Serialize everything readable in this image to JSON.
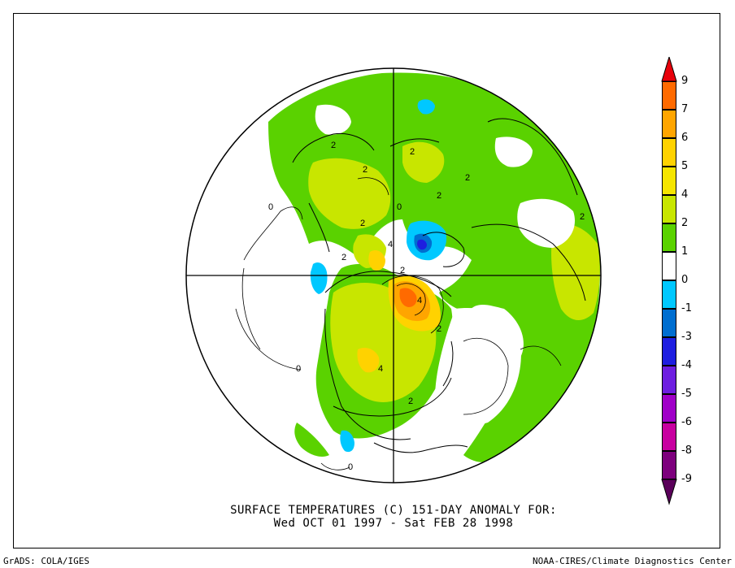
{
  "title_line1": "SURFACE TEMPERATURES (C)   151-DAY ANOMALY FOR:",
  "title_line2": "Wed OCT 01 1997 - Sat FEB 28 1998",
  "footer_left": "GrADS: COLA/IGES",
  "footer_right": "NOAA-CIRES/Climate Diagnostics Center",
  "colorbar": {
    "labels": [
      "9",
      "7",
      "6",
      "5",
      "4",
      "2",
      "1",
      "0",
      "-1",
      "-3",
      "-4",
      "-5",
      "-6",
      "-8",
      "-9"
    ],
    "colors": [
      "#e8000b",
      "#ff6a00",
      "#ffa500",
      "#ffd200",
      "#f5e500",
      "#c8e600",
      "#5ad200",
      "#ffffff",
      "#00c8ff",
      "#006ed0",
      "#1e1ee0",
      "#6e1ee0",
      "#a000c8",
      "#c800a0",
      "#7d007d",
      "#5a005a"
    ]
  },
  "map_labels": {
    "contour_values": [
      "2",
      "2",
      "2",
      "2",
      "2",
      "2",
      "2",
      "2",
      "2",
      "4",
      "4",
      "4",
      "0",
      "0",
      "0",
      "0",
      "2",
      "2"
    ]
  }
}
